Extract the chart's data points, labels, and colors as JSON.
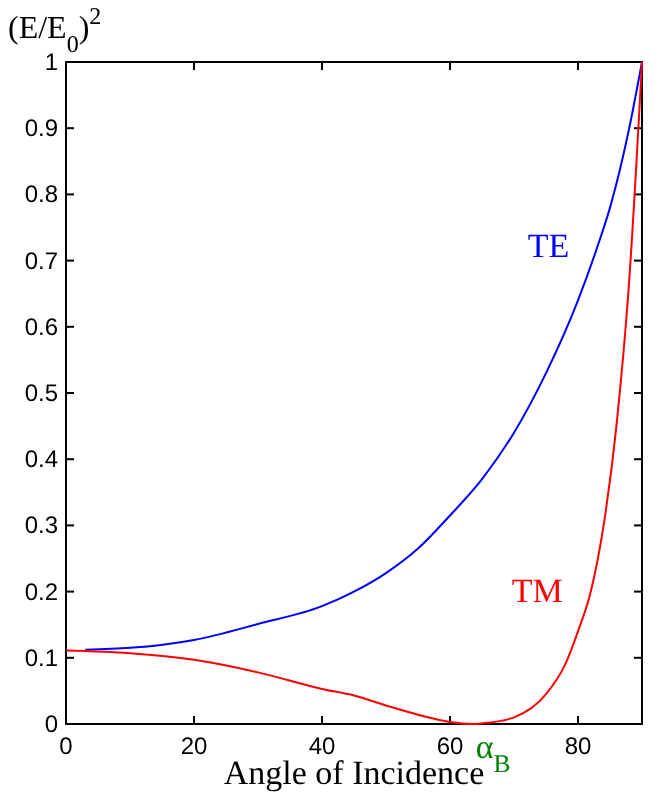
{
  "chart_data": {
    "type": "line",
    "ylabel": "(E/E$_{0}$)$^{2}$",
    "xlabel": "Angle of Incidence",
    "xlim": [
      0,
      90
    ],
    "xticks": [
      0,
      20,
      40,
      60,
      80
    ],
    "ylim": [
      0,
      1
    ],
    "yticks": [
      0,
      0.1,
      0.2,
      0.3,
      0.4,
      0.5,
      0.6,
      0.7,
      0.8,
      0.9,
      1
    ],
    "series": [
      {
        "name": "TE",
        "color": "#0000ff",
        "x": [
          3,
          10,
          20,
          30,
          40,
          45,
          50,
          55,
          60,
          65,
          70,
          75,
          80,
          83,
          85,
          88,
          90
        ],
        "values": [
          0.112,
          0.115,
          0.127,
          0.151,
          0.178,
          0.2,
          0.228,
          0.265,
          0.315,
          0.37,
          0.44,
          0.53,
          0.64,
          0.72,
          0.78,
          0.9,
          1
        ]
      },
      {
        "name": "TM",
        "color": "#ff0000",
        "x": [
          0,
          10,
          20,
          30,
          40,
          45,
          50,
          55,
          60,
          63.4,
          65,
          70,
          75,
          78,
          80,
          82,
          84,
          86,
          88,
          90
        ],
        "values": [
          0.111,
          0.107,
          0.097,
          0.078,
          0.053,
          0.043,
          0.028,
          0.014,
          0.003,
          0,
          0.001,
          0.01,
          0.045,
          0.09,
          0.14,
          0.2,
          0.3,
          0.45,
          0.67,
          1
        ]
      }
    ],
    "annotations": [
      {
        "text": "α$_{B}$",
        "x": 63.4,
        "y": 0
      }
    ]
  }
}
